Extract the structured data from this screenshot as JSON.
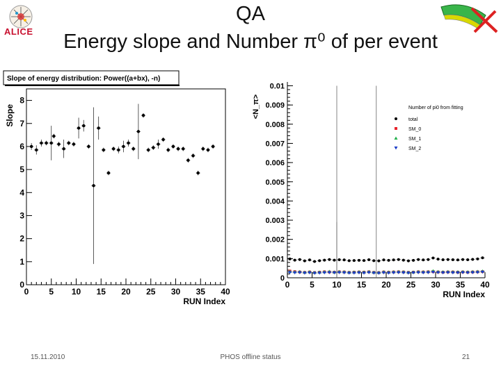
{
  "slide": {
    "title_line1": "QA",
    "title_line2": "Energy slope and Number π⁰ of per event",
    "logo_text": "ALICE",
    "footer_date": "15.11.2010",
    "footer_center": "PHOS offline status",
    "footer_page": "21"
  },
  "colors": {
    "logo": "#c8102e",
    "sm0": "#e8242c",
    "sm1": "#22b14c",
    "sm2": "#1a3cc8"
  },
  "chart_data": [
    {
      "type": "scatter",
      "title": "Slope of energy distribution: Power((a+bx), -n)",
      "xlabel": "RUN Index",
      "ylabel": "Slope",
      "xlim": [
        0,
        40
      ],
      "ylim": [
        0,
        8.5
      ],
      "xticks": [
        "0",
        "5",
        "10",
        "15",
        "20",
        "25",
        "30",
        "35",
        "40"
      ],
      "yticks": [
        "0",
        "1",
        "2",
        "3",
        "4",
        "5",
        "6",
        "7",
        "8"
      ],
      "points": [
        {
          "x": 1,
          "y": 6.0,
          "err": 0.15
        },
        {
          "x": 2,
          "y": 5.85,
          "err": 0.2
        },
        {
          "x": 3,
          "y": 6.15,
          "err": 0.15
        },
        {
          "x": 4,
          "y": 6.15,
          "err": 0.1
        },
        {
          "x": 5,
          "y": 6.15,
          "err": 0.75
        },
        {
          "x": 5.5,
          "y": 6.45,
          "err": 0.1
        },
        {
          "x": 6.5,
          "y": 6.1,
          "err": 0.1
        },
        {
          "x": 7.5,
          "y": 5.9,
          "err": 0.4
        },
        {
          "x": 8.5,
          "y": 6.15,
          "err": 0.1
        },
        {
          "x": 9.5,
          "y": 6.1,
          "err": 0.1
        },
        {
          "x": 10.5,
          "y": 6.8,
          "err": 0.45
        },
        {
          "x": 11.5,
          "y": 6.9,
          "err": 0.25
        },
        {
          "x": 12.5,
          "y": 6.0,
          "err": 0.1
        },
        {
          "x": 13.5,
          "y": 4.3,
          "err": 3.4
        },
        {
          "x": 14.5,
          "y": 6.8,
          "err": 0.5
        },
        {
          "x": 15.5,
          "y": 5.85,
          "err": 0.1
        },
        {
          "x": 16.5,
          "y": 4.85,
          "err": 0.1
        },
        {
          "x": 17.5,
          "y": 5.9,
          "err": 0.1
        },
        {
          "x": 18.5,
          "y": 5.85,
          "err": 0.15
        },
        {
          "x": 19.5,
          "y": 6.0,
          "err": 0.25
        },
        {
          "x": 20.5,
          "y": 6.15,
          "err": 0.15
        },
        {
          "x": 21.5,
          "y": 5.9,
          "err": 0.1
        },
        {
          "x": 22.5,
          "y": 6.65,
          "err": 1.2
        },
        {
          "x": 23.5,
          "y": 7.35,
          "err": 0.1
        },
        {
          "x": 24.5,
          "y": 5.85,
          "err": 0.1
        },
        {
          "x": 25.5,
          "y": 5.95,
          "err": 0.1
        },
        {
          "x": 26.5,
          "y": 6.1,
          "err": 0.2
        },
        {
          "x": 27.5,
          "y": 6.3,
          "err": 0.1
        },
        {
          "x": 28.5,
          "y": 5.85,
          "err": 0.1
        },
        {
          "x": 29.5,
          "y": 6.0,
          "err": 0.1
        },
        {
          "x": 30.5,
          "y": 5.9,
          "err": 0.1
        },
        {
          "x": 31.5,
          "y": 5.9,
          "err": 0.1
        },
        {
          "x": 32.5,
          "y": 5.4,
          "err": 0.1
        },
        {
          "x": 33.5,
          "y": 5.6,
          "err": 0.1
        },
        {
          "x": 34.5,
          "y": 4.85,
          "err": 0.1
        },
        {
          "x": 35.5,
          "y": 5.9,
          "err": 0.1
        },
        {
          "x": 36.5,
          "y": 5.85,
          "err": 0.1
        },
        {
          "x": 37.5,
          "y": 6.0,
          "err": 0.1
        }
      ]
    },
    {
      "type": "scatter",
      "title": "Number of pi0 from fitting",
      "xlabel": "RUN Index",
      "ylabel": "<N_π>",
      "xlim": [
        0,
        40
      ],
      "ylim": [
        0,
        0.0102
      ],
      "xticks": [
        "0",
        "5",
        "10",
        "15",
        "20",
        "25",
        "30",
        "35",
        "40"
      ],
      "yticks": [
        "0",
        "0.001",
        "0.002",
        "0.003",
        "0.004",
        "0.005",
        "0.006",
        "0.007",
        "0.008",
        "0.009",
        "0.01"
      ],
      "legend": [
        "total",
        "SM_0",
        "SM_1",
        "SM_2"
      ],
      "spikes": [
        {
          "x": 10,
          "y": 0.01
        },
        {
          "x": 18,
          "y": 0.01
        },
        {
          "x": 10,
          "y": 0.0029
        }
      ],
      "series": [
        {
          "name": "total",
          "values": [
            0.00098,
            0.00092,
            0.00095,
            0.00088,
            0.00093,
            0.00085,
            0.00089,
            0.00092,
            0.00095,
            0.00092,
            0.00094,
            0.00093,
            0.00089,
            0.0009,
            0.00091,
            0.0009,
            0.00094,
            0.00089,
            0.00088,
            0.00093,
            0.00091,
            0.00093,
            0.00095,
            0.00092,
            0.00088,
            0.00091,
            0.00095,
            0.00093,
            0.00095,
            0.00103,
            0.00097,
            0.00094,
            0.00095,
            0.00094,
            0.00093,
            0.00095,
            0.00094,
            0.00096,
            0.00098,
            0.00104
          ]
        },
        {
          "name": "SM_0",
          "values": [
            0.00035,
            0.00032,
            0.0003,
            0.00028,
            0.0003,
            0.00027,
            0.00029,
            0.00031,
            0.0003,
            0.00029,
            0.00031,
            0.0003,
            0.00028,
            0.00029,
            0.0003,
            0.00029,
            0.00031,
            0.00028,
            0.00027,
            0.0003,
            0.00029,
            0.0003,
            0.00031,
            0.0003,
            0.00028,
            0.00029,
            0.00031,
            0.0003,
            0.00031,
            0.00032,
            0.0003,
            0.00029,
            0.0003,
            0.0003,
            0.00029,
            0.0003,
            0.00029,
            0.0003,
            0.00031,
            0.00032
          ]
        },
        {
          "name": "SM_1",
          "values": [
            0.00033,
            0.00031,
            0.00032,
            0.00029,
            0.00031,
            0.00028,
            0.0003,
            0.00031,
            0.00033,
            0.0003,
            0.00032,
            0.00031,
            0.00029,
            0.0003,
            0.00031,
            0.0003,
            0.00032,
            0.00029,
            0.00028,
            0.00031,
            0.0003,
            0.00031,
            0.00032,
            0.00031,
            0.00029,
            0.0003,
            0.00032,
            0.00031,
            0.00032,
            0.00036,
            0.00032,
            0.00031,
            0.00032,
            0.00031,
            0.00031,
            0.00032,
            0.00031,
            0.00032,
            0.00033,
            0.00035
          ]
        },
        {
          "name": "SM_2",
          "values": [
            0.00028,
            0.00026,
            0.00027,
            0.00025,
            0.00026,
            0.00024,
            0.00025,
            0.00026,
            0.00027,
            0.00026,
            0.00027,
            0.00026,
            0.00025,
            0.00025,
            0.00026,
            0.00025,
            0.00027,
            0.00025,
            0.00024,
            0.00026,
            0.00025,
            0.00026,
            0.00027,
            0.00026,
            0.00025,
            0.00026,
            0.00027,
            0.00026,
            0.00027,
            0.00029,
            0.00027,
            0.00026,
            0.00027,
            0.00026,
            0.00026,
            0.00027,
            0.00026,
            0.00027,
            0.00028,
            0.0003
          ]
        }
      ]
    }
  ]
}
